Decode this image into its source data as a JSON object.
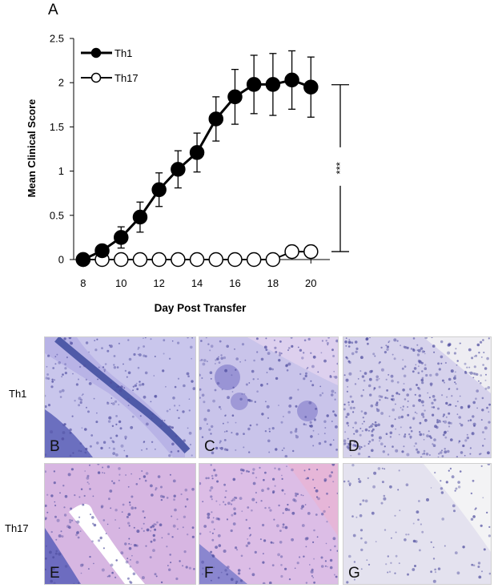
{
  "panel_a_letter": "A",
  "chart_data": {
    "type": "line",
    "xlabel": "Day Post Transfer",
    "ylabel": "Mean Clinical Score",
    "xlim": [
      7.5,
      21
    ],
    "ylim": [
      0,
      2.5
    ],
    "x_ticks": [
      "8",
      "10",
      "12",
      "14",
      "16",
      "18",
      "20"
    ],
    "y_ticks": [
      "0",
      "0.5",
      "1",
      "1.5",
      "2",
      "2.5"
    ],
    "legend_position": "top-left",
    "significance_label": "***",
    "series": [
      {
        "name": "Th1",
        "marker": "filled-circle",
        "color": "#000000",
        "x": [
          8,
          9,
          10,
          11,
          12,
          13,
          14,
          15,
          16,
          17,
          18,
          19,
          20
        ],
        "y": [
          0,
          0.1,
          0.25,
          0.48,
          0.79,
          1.02,
          1.21,
          1.59,
          1.84,
          1.98,
          1.98,
          2.03,
          1.95
        ],
        "error": [
          0,
          0.04,
          0.12,
          0.17,
          0.19,
          0.21,
          0.22,
          0.25,
          0.31,
          0.33,
          0.35,
          0.33,
          0.34
        ]
      },
      {
        "name": "Th17",
        "marker": "open-circle",
        "color": "#000000",
        "x": [
          8,
          9,
          10,
          11,
          12,
          13,
          14,
          15,
          16,
          17,
          18,
          19,
          20
        ],
        "y": [
          0,
          0,
          0,
          0,
          0,
          0,
          0,
          0,
          0,
          0,
          0,
          0.09,
          0.09
        ],
        "error": [
          0,
          0,
          0,
          0,
          0,
          0,
          0,
          0,
          0,
          0,
          0,
          0.07,
          0.07
        ]
      }
    ]
  },
  "histology": {
    "rows": [
      {
        "label": "Th1",
        "tiles": [
          {
            "letter": "B",
            "stain": "dark-vessel",
            "base": "#c9c6ec"
          },
          {
            "letter": "C",
            "stain": "infiltrate",
            "base": "#c9c4ea"
          },
          {
            "letter": "D",
            "stain": "dense-infiltrate",
            "base": "#d6d2ec"
          }
        ]
      },
      {
        "label": "Th17",
        "tiles": [
          {
            "letter": "E",
            "stain": "vessel",
            "base": "#d7b6e2"
          },
          {
            "letter": "F",
            "stain": "pink-tissue",
            "base": "#dcbde6"
          },
          {
            "letter": "G",
            "stain": "sparse",
            "base": "#e4e2ef"
          }
        ]
      }
    ]
  }
}
